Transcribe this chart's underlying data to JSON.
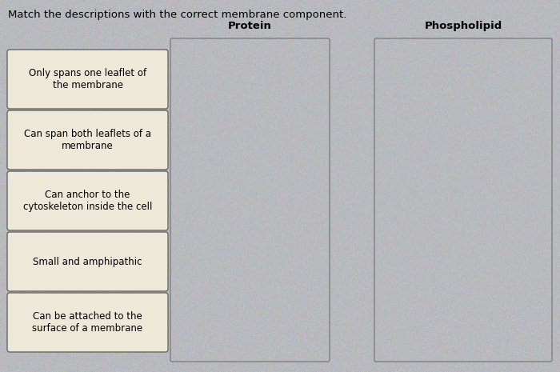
{
  "title": "Match the descriptions with the correct membrane component.",
  "title_fontsize": 9.5,
  "background_color": "#b8babe",
  "card_bg": "#ede8d8",
  "card_border": "#666666",
  "drop_zone_bg": "#c8c9cc",
  "drop_zone_border": "#808080",
  "text_color": "#000000",
  "cards": [
    "Only spans one leaflet of\nthe membrane",
    "Can span both leaflets of a\nmembrane",
    "Can anchor to the\ncytoskeleton inside the cell",
    "Small and amphipathic",
    "Can be attached to the\nsurface of a membrane"
  ],
  "columns": [
    "Protein",
    "Phospholipid"
  ],
  "font_size_card": 8.5,
  "font_size_header": 9.5
}
